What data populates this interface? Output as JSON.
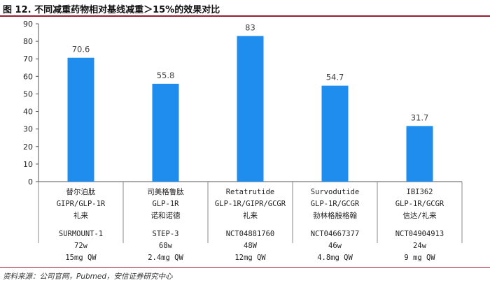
{
  "header": {
    "title": "图 12. 不同减重药物相对基线减重＞15%的效果对比"
  },
  "footer": {
    "source": "资料来源：公司官网，Pubmed，安信证券研究中心"
  },
  "colors": {
    "bar": "#1f8ded",
    "accent": "#9b1b30",
    "axis": "#555555"
  },
  "chart_data": {
    "type": "bar",
    "ylim": [
      0,
      90
    ],
    "yticks": [
      0,
      10,
      20,
      30,
      40,
      50,
      60,
      70,
      80,
      90
    ],
    "grid": false,
    "categories": [
      {
        "lines": [
          "替尔泊肽",
          "GIPR/GLP-1R",
          "礼来"
        ],
        "trial": "SURMOUNT-1",
        "duration": "72w",
        "dose": "15mg QW"
      },
      {
        "lines": [
          "司美格鲁肽",
          "GLP-1R",
          "诺和诺德"
        ],
        "trial": "STEP-3",
        "duration": "68w",
        "dose": "2.4mg QW"
      },
      {
        "lines": [
          "Retatrutide",
          "GLP-1R/GIPR/GCGR",
          "礼来"
        ],
        "trial": "NCT04881760",
        "duration": "48W",
        "dose": "12mg QW"
      },
      {
        "lines": [
          "Survodutide",
          "GLP-1R/GCGR",
          "勃林格殷格翰"
        ],
        "trial": "NCT04667377",
        "duration": "46w",
        "dose": "4.8mg QW"
      },
      {
        "lines": [
          "IBI362",
          "GLP-1R/GCGR",
          "信达/礼来"
        ],
        "trial": "NCT04904913",
        "duration": "24w",
        "dose": "9 mg QW"
      }
    ],
    "values": [
      70.6,
      55.8,
      83,
      54.7,
      31.7
    ],
    "value_labels": [
      "70.6",
      "55.8",
      "83",
      "54.7",
      "31.7"
    ]
  }
}
